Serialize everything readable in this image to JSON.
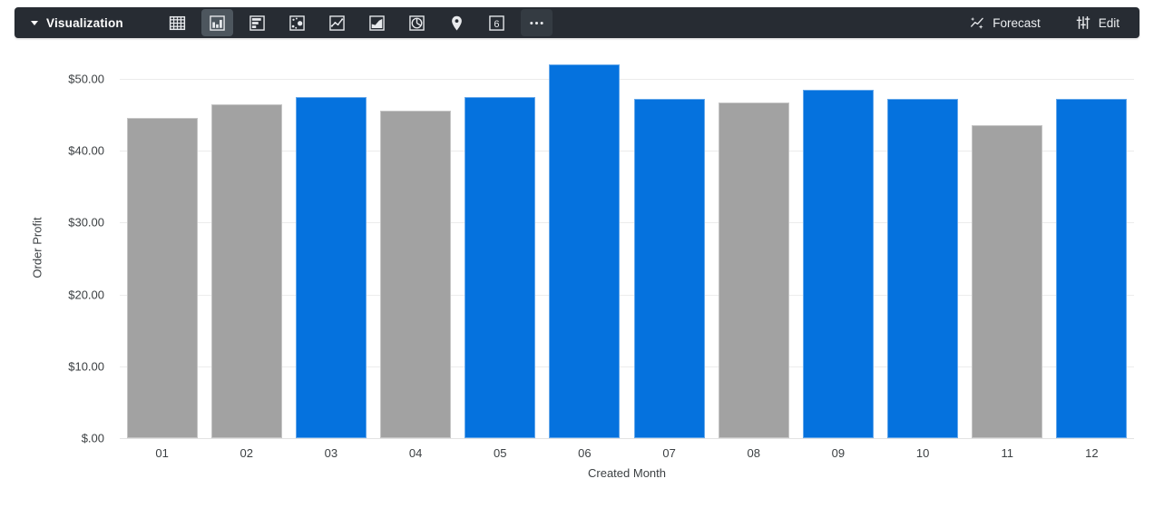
{
  "colors": {
    "toolbar_bg": "#272C33",
    "selected_bg": "#4D565E",
    "soft_bg": "#343B42",
    "icon_color": "#E8EAED",
    "grid": "#ECECEC",
    "grid_zero": "#E3E3E3",
    "axis_text": "#3C4043",
    "bar_blue": "#0572DE",
    "bar_gray": "#A2A2A2"
  },
  "toolbar": {
    "title": "Visualization",
    "chart_type_icons": [
      {
        "icon": "table-icon",
        "selected": false
      },
      {
        "icon": "column-chart-icon",
        "selected": true
      },
      {
        "icon": "bar-chart-icon",
        "selected": false
      },
      {
        "icon": "scatter-chart-icon",
        "selected": false
      },
      {
        "icon": "line-chart-icon",
        "selected": false
      },
      {
        "icon": "area-chart-icon",
        "selected": false
      },
      {
        "icon": "pie-chart-icon",
        "selected": false
      },
      {
        "icon": "map-pin-icon",
        "selected": false
      },
      {
        "icon": "single-value-icon",
        "selected": false,
        "text": "6"
      },
      {
        "icon": "more-options-icon",
        "selected": false,
        "soft": true
      }
    ],
    "forecast_label": "Forecast",
    "edit_label": "Edit"
  },
  "chart_data": {
    "type": "bar",
    "xlabel": "Created Month",
    "ylabel": "Order Profit",
    "ylim": [
      0,
      53
    ],
    "grid": true,
    "y_ticks": [
      {
        "value": 50,
        "label": "$50.00"
      },
      {
        "value": 40,
        "label": "$40.00"
      },
      {
        "value": 30,
        "label": "$30.00"
      },
      {
        "value": 20,
        "label": "$20.00"
      },
      {
        "value": 10,
        "label": "$10.00"
      },
      {
        "value": 0,
        "label": "$.00"
      }
    ],
    "bars": [
      {
        "category": "01",
        "value": 44.5,
        "color": "gray"
      },
      {
        "category": "02",
        "value": 46.5,
        "color": "gray"
      },
      {
        "category": "03",
        "value": 47.5,
        "color": "blue"
      },
      {
        "category": "04",
        "value": 45.5,
        "color": "gray"
      },
      {
        "category": "05",
        "value": 47.5,
        "color": "blue"
      },
      {
        "category": "06",
        "value": 52.0,
        "color": "blue"
      },
      {
        "category": "07",
        "value": 47.25,
        "color": "blue"
      },
      {
        "category": "08",
        "value": 46.7,
        "color": "gray"
      },
      {
        "category": "09",
        "value": 48.5,
        "color": "blue"
      },
      {
        "category": "10",
        "value": 47.25,
        "color": "blue"
      },
      {
        "category": "11",
        "value": 43.6,
        "color": "gray"
      },
      {
        "category": "12",
        "value": 47.25,
        "color": "blue"
      }
    ]
  }
}
